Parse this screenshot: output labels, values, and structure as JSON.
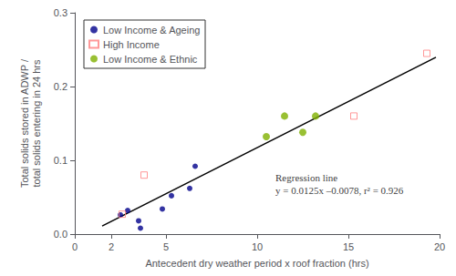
{
  "chart_data": {
    "type": "scatter",
    "xlabel": "Antecedent dry weather period x roof fraction (hrs)",
    "ylabel": "Total solids stored in ADWP /\ntotal solids entering in 24 hrs",
    "xlim": [
      0,
      20
    ],
    "xticks": [
      0,
      2,
      5,
      10,
      15,
      20
    ],
    "ylim": [
      0.0,
      0.3
    ],
    "yticks": [
      {
        "value": 0.0,
        "label": "0.0"
      },
      0.1,
      0.2,
      0.3
    ],
    "grid": false,
    "legend": "upper left",
    "series": [
      {
        "type": "line",
        "color": "black",
        "x": [
          1.5,
          19.8
        ],
        "y": [
          0.01095,
          0.2397
        ]
      },
      {
        "type": "scatter",
        "name": "Low Income & Ageing",
        "color": "#00008B",
        "marker": "dot",
        "x": [
          2.5,
          2.9,
          3.5,
          3.6,
          4.8,
          5.3,
          6.3,
          6.6
        ],
        "y": [
          0.026,
          0.032,
          0.018,
          0.008,
          0.034,
          0.052,
          0.062,
          0.092
        ]
      },
      {
        "type": "scatter",
        "name": "High Income",
        "color": "#FF8080",
        "marker": "open-square",
        "x": [
          2.6,
          3.8,
          15.3,
          19.3
        ],
        "y": [
          0.027,
          0.08,
          0.16,
          0.245
        ]
      },
      {
        "type": "scatter",
        "name": "Low Income & Ethnic",
        "color": "#80B000",
        "marker": "circle",
        "x": [
          10.5,
          11.5,
          12.5,
          13.2
        ],
        "y": [
          0.132,
          0.16,
          0.138,
          0.16
        ]
      }
    ],
    "annotations": [
      {
        "text": "Regression line\ny = 0.0125x –0.0078, r² = 0.926",
        "x": 11.0,
        "y": 0.085
      }
    ]
  }
}
